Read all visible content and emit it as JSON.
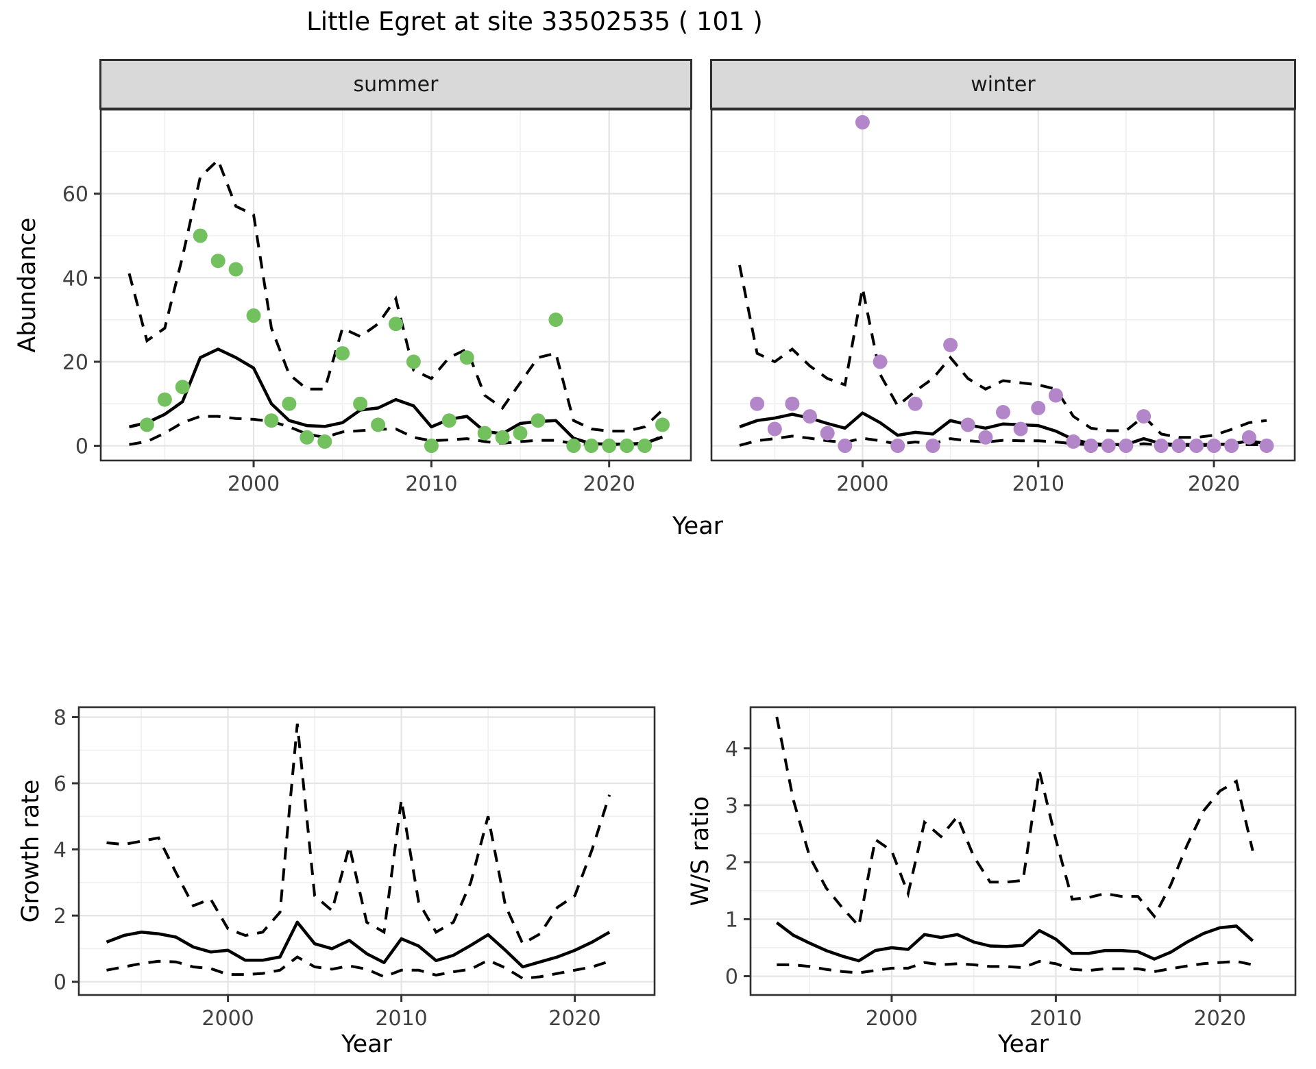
{
  "title": "Little Egret at site 33502535 ( 101 )",
  "axes": {
    "y_top": "Abundance",
    "x_top": "Year",
    "y_growth": "Growth rate",
    "x_growth": "Year",
    "y_ws": "W/S ratio",
    "x_ws": "Year"
  },
  "colors": {
    "summer_point": "#73c05f",
    "winter_point": "#b286c9",
    "line": "#000000",
    "strip_bg": "#d9d9d9",
    "panel_border": "#2f2f2f",
    "grid_major": "#e4e4e4",
    "grid_minor": "#efefef",
    "axis_text": "#404040"
  },
  "chart_data": [
    {
      "id": "summer",
      "type": "line",
      "facet_label": "summer",
      "xlabel": "Year",
      "ylabel": "Abundance",
      "xlim": [
        1991.4,
        2024.6
      ],
      "ylim": [
        -3.5,
        80
      ],
      "x_ticks": [
        2000,
        2010,
        2020
      ],
      "x_minor": [
        1995,
        2005,
        2015
      ],
      "y_ticks": [
        0,
        20,
        40,
        60
      ],
      "y_minor": [
        10,
        30,
        50,
        70
      ],
      "observed": {
        "years": [
          1994,
          1995,
          1996,
          1997,
          1998,
          1999,
          2000,
          2001,
          2002,
          2003,
          2004,
          2005,
          2006,
          2007,
          2008,
          2009,
          2010,
          2011,
          2012,
          2013,
          2014,
          2015,
          2016,
          2017,
          2018,
          2019,
          2020,
          2021,
          2022,
          2023
        ],
        "values": [
          5,
          11,
          14,
          50,
          44,
          42,
          31,
          6,
          10,
          2,
          1,
          22,
          10,
          5,
          29,
          20,
          0,
          6,
          21,
          3,
          2,
          3,
          6,
          30,
          0,
          0,
          0,
          0,
          0,
          5
        ]
      },
      "fit": {
        "years": [
          1993,
          1994,
          1995,
          1996,
          1997,
          1998,
          1999,
          2000,
          2001,
          2002,
          2003,
          2004,
          2005,
          2006,
          2007,
          2008,
          2009,
          2010,
          2011,
          2012,
          2013,
          2014,
          2015,
          2016,
          2017,
          2018,
          2019,
          2020,
          2021,
          2022,
          2023
        ],
        "values": [
          4.5,
          5.5,
          7.5,
          10.5,
          21,
          23,
          21,
          18.5,
          10,
          6,
          4.8,
          4.6,
          5.5,
          8.5,
          9,
          11,
          9.5,
          4.5,
          6.3,
          7,
          3.4,
          2.9,
          5.3,
          5.8,
          6,
          1.8,
          0.5,
          0.4,
          0.4,
          0.6,
          2.1
        ]
      },
      "upper": {
        "years": [
          1993,
          1994,
          1995,
          1996,
          1997,
          1998,
          1999,
          2000,
          2001,
          2002,
          2003,
          2004,
          2005,
          2006,
          2007,
          2008,
          2009,
          2010,
          2011,
          2012,
          2013,
          2014,
          2015,
          2016,
          2017,
          2018,
          2019,
          2020,
          2021,
          2022,
          2023
        ],
        "values": [
          41,
          25,
          28,
          45,
          64,
          68,
          57,
          55,
          28,
          17,
          13.5,
          13.5,
          28,
          26,
          29,
          35,
          18,
          16,
          21,
          23,
          12,
          9,
          15,
          21,
          22,
          6,
          4,
          3.5,
          3.5,
          4.5,
          8.5
        ]
      },
      "lower": {
        "years": [
          1993,
          1994,
          1995,
          1996,
          1997,
          1998,
          1999,
          2000,
          2001,
          2002,
          2003,
          2004,
          2005,
          2006,
          2007,
          2008,
          2009,
          2010,
          2011,
          2012,
          2013,
          2014,
          2015,
          2016,
          2017,
          2018,
          2019,
          2020,
          2021,
          2022,
          2023
        ],
        "values": [
          0.3,
          1,
          3,
          5.5,
          7,
          7,
          6.5,
          6.3,
          5.8,
          4.5,
          2.8,
          2,
          3.3,
          3.6,
          3.9,
          4,
          2,
          1.2,
          1.4,
          1.7,
          1,
          0.6,
          1,
          1.3,
          1.3,
          0.5,
          0.3,
          0.3,
          0.3,
          0.5,
          2.3
        ]
      }
    },
    {
      "id": "winter",
      "type": "line",
      "facet_label": "winter",
      "xlabel": "Year",
      "ylabel": "Abundance",
      "xlim": [
        1991.4,
        2024.6
      ],
      "ylim": [
        -3.5,
        80
      ],
      "x_ticks": [
        2000,
        2010,
        2020
      ],
      "x_minor": [
        1995,
        2005,
        2015
      ],
      "y_ticks": [
        0,
        20,
        40,
        60
      ],
      "y_minor": [
        10,
        30,
        50,
        70
      ],
      "observed": {
        "years": [
          1994,
          1995,
          1996,
          1997,
          1998,
          1999,
          2000,
          2001,
          2002,
          2003,
          2004,
          2005,
          2006,
          2007,
          2008,
          2009,
          2010,
          2011,
          2012,
          2013,
          2014,
          2015,
          2016,
          2017,
          2018,
          2019,
          2020,
          2021,
          2022,
          2023
        ],
        "values": [
          10,
          4,
          10,
          7,
          3,
          0,
          77,
          20,
          0,
          10,
          0,
          24,
          5,
          2,
          8,
          4,
          9,
          12,
          1,
          0,
          0,
          0,
          7,
          0,
          0,
          0,
          0,
          0,
          2,
          0
        ]
      },
      "fit": {
        "years": [
          1993,
          1994,
          1995,
          1996,
          1997,
          1998,
          1999,
          2000,
          2001,
          2002,
          2003,
          2004,
          2005,
          2006,
          2007,
          2008,
          2009,
          2010,
          2011,
          2012,
          2013,
          2014,
          2015,
          2016,
          2017,
          2018,
          2019,
          2020,
          2021,
          2022,
          2023
        ],
        "values": [
          4.5,
          6,
          6.6,
          7.5,
          6.6,
          5.3,
          4.2,
          7.8,
          5.5,
          2.5,
          3.2,
          2.8,
          6,
          5,
          4.2,
          5.2,
          5,
          4.8,
          3.5,
          1.5,
          0.5,
          0.3,
          0.3,
          1.7,
          0.5,
          0.3,
          0.3,
          0.3,
          0.4,
          1.2,
          0.5
        ]
      },
      "upper": {
        "years": [
          1993,
          1994,
          1995,
          1996,
          1997,
          1998,
          1999,
          2000,
          2001,
          2002,
          2003,
          2004,
          2005,
          2006,
          2007,
          2008,
          2009,
          2010,
          2011,
          2012,
          2013,
          2014,
          2015,
          2016,
          2017,
          2018,
          2019,
          2020,
          2021,
          2022,
          2023
        ],
        "values": [
          43,
          22,
          20,
          23,
          19,
          16,
          14.5,
          37.5,
          17,
          9.5,
          13,
          16,
          21,
          16,
          13.5,
          15.5,
          15,
          14.5,
          13.5,
          7,
          4.2,
          3.6,
          3.6,
          7,
          2.8,
          2,
          2,
          2.5,
          3.9,
          5.5,
          6
        ]
      },
      "lower": {
        "years": [
          1993,
          1994,
          1995,
          1996,
          1997,
          1998,
          1999,
          2000,
          2001,
          2002,
          2003,
          2004,
          2005,
          2006,
          2007,
          2008,
          2009,
          2010,
          2011,
          2012,
          2013,
          2014,
          2015,
          2016,
          2017,
          2018,
          2019,
          2020,
          2021,
          2022,
          2023
        ],
        "values": [
          0.1,
          1.2,
          1.7,
          2.3,
          1.8,
          1.2,
          0.8,
          1.8,
          1.2,
          0.4,
          0.9,
          0.5,
          1.7,
          1.2,
          0.9,
          1.3,
          1.2,
          1.2,
          0.9,
          0.5,
          0.2,
          0.1,
          0.1,
          0.5,
          0.2,
          0.1,
          0.1,
          0.1,
          0.1,
          0.3,
          0.2
        ]
      }
    },
    {
      "id": "growth",
      "type": "line",
      "facet_label": "",
      "xlabel": "Year",
      "ylabel": "Growth rate",
      "xlim": [
        1991.4,
        2024.6
      ],
      "ylim": [
        -0.4,
        8.3
      ],
      "x_ticks": [
        2000,
        2010,
        2020
      ],
      "x_minor": [
        1995,
        2005,
        2015
      ],
      "y_ticks": [
        0,
        2,
        4,
        6,
        8
      ],
      "y_minor": [
        1,
        3,
        5,
        7
      ],
      "fit": {
        "years": [
          1993,
          1994,
          1995,
          1996,
          1997,
          1998,
          1999,
          2000,
          2001,
          2002,
          2003,
          2004,
          2005,
          2006,
          2007,
          2008,
          2009,
          2010,
          2011,
          2012,
          2013,
          2014,
          2015,
          2016,
          2017,
          2018,
          2019,
          2020,
          2021,
          2022
        ],
        "values": [
          1.2,
          1.4,
          1.5,
          1.45,
          1.35,
          1.05,
          0.9,
          0.95,
          0.65,
          0.65,
          0.75,
          1.8,
          1.15,
          1.0,
          1.25,
          0.85,
          0.58,
          1.3,
          1.08,
          0.64,
          0.8,
          1.1,
          1.42,
          0.95,
          0.45,
          0.6,
          0.75,
          0.95,
          1.2,
          1.5
        ]
      },
      "upper": {
        "years": [
          1993,
          1994,
          1995,
          1996,
          1997,
          1998,
          1999,
          2000,
          2001,
          2002,
          2003,
          2004,
          2005,
          2006,
          2007,
          2008,
          2009,
          2010,
          2011,
          2012,
          2013,
          2014,
          2015,
          2016,
          2017,
          2018,
          2019,
          2020,
          2021,
          2022
        ],
        "values": [
          4.2,
          4.15,
          4.25,
          4.35,
          3.3,
          2.3,
          2.5,
          1.6,
          1.4,
          1.5,
          2.1,
          7.8,
          2.6,
          2.15,
          4.1,
          1.8,
          1.5,
          5.5,
          2.4,
          1.5,
          1.8,
          3.0,
          5.0,
          2.3,
          1.15,
          1.45,
          2.25,
          2.6,
          4.0,
          5.65
        ]
      },
      "lower": {
        "years": [
          1993,
          1994,
          1995,
          1996,
          1997,
          1998,
          1999,
          2000,
          2001,
          2002,
          2003,
          2004,
          2005,
          2006,
          2007,
          2008,
          2009,
          2010,
          2011,
          2012,
          2013,
          2014,
          2015,
          2016,
          2017,
          2018,
          2019,
          2020,
          2021,
          2022
        ],
        "values": [
          0.35,
          0.45,
          0.55,
          0.62,
          0.6,
          0.45,
          0.4,
          0.22,
          0.22,
          0.25,
          0.35,
          0.75,
          0.45,
          0.38,
          0.48,
          0.38,
          0.15,
          0.35,
          0.35,
          0.2,
          0.3,
          0.38,
          0.65,
          0.42,
          0.1,
          0.15,
          0.25,
          0.35,
          0.45,
          0.62
        ]
      }
    },
    {
      "id": "ws",
      "type": "line",
      "facet_label": "",
      "xlabel": "Year",
      "ylabel": "W/S ratio",
      "xlim": [
        1991.4,
        2024.6
      ],
      "ylim": [
        -0.33,
        4.72
      ],
      "x_ticks": [
        2000,
        2010,
        2020
      ],
      "x_minor": [
        1995,
        2005,
        2015
      ],
      "y_ticks": [
        0,
        1,
        2,
        3,
        4
      ],
      "y_minor": [
        0.5,
        1.5,
        2.5,
        3.5
      ],
      "fit": {
        "years": [
          1993,
          1994,
          1995,
          1996,
          1997,
          1998,
          1999,
          2000,
          2001,
          2002,
          2003,
          2004,
          2005,
          2006,
          2007,
          2008,
          2009,
          2010,
          2011,
          2012,
          2013,
          2014,
          2015,
          2016,
          2017,
          2018,
          2019,
          2020,
          2021,
          2022
        ],
        "values": [
          0.94,
          0.72,
          0.58,
          0.45,
          0.35,
          0.27,
          0.45,
          0.5,
          0.47,
          0.73,
          0.68,
          0.73,
          0.6,
          0.53,
          0.52,
          0.54,
          0.8,
          0.65,
          0.4,
          0.4,
          0.45,
          0.45,
          0.43,
          0.3,
          0.42,
          0.6,
          0.75,
          0.85,
          0.88,
          0.62
        ]
      },
      "upper": {
        "years": [
          1993,
          1994,
          1995,
          1996,
          1997,
          1998,
          1999,
          2000,
          2001,
          2002,
          2003,
          2004,
          2005,
          2006,
          2007,
          2008,
          2009,
          2010,
          2011,
          2012,
          2013,
          2014,
          2015,
          2016,
          2017,
          2018,
          2019,
          2020,
          2021,
          2022
        ],
        "values": [
          4.55,
          3.1,
          2.1,
          1.55,
          1.2,
          0.88,
          2.4,
          2.2,
          1.45,
          2.7,
          2.45,
          2.8,
          2.1,
          1.65,
          1.65,
          1.68,
          3.6,
          2.4,
          1.35,
          1.38,
          1.45,
          1.4,
          1.4,
          1.05,
          1.6,
          2.3,
          2.9,
          3.25,
          3.42,
          2.2
        ]
      },
      "lower": {
        "years": [
          1993,
          1994,
          1995,
          1996,
          1997,
          1998,
          1999,
          2000,
          2001,
          2002,
          2003,
          2004,
          2005,
          2006,
          2007,
          2008,
          2009,
          2010,
          2011,
          2012,
          2013,
          2014,
          2015,
          2016,
          2017,
          2018,
          2019,
          2020,
          2021,
          2022
        ],
        "values": [
          0.2,
          0.2,
          0.17,
          0.12,
          0.08,
          0.06,
          0.1,
          0.14,
          0.14,
          0.24,
          0.2,
          0.22,
          0.2,
          0.17,
          0.17,
          0.15,
          0.26,
          0.22,
          0.12,
          0.1,
          0.13,
          0.13,
          0.13,
          0.08,
          0.13,
          0.18,
          0.22,
          0.24,
          0.26,
          0.2
        ]
      }
    }
  ]
}
